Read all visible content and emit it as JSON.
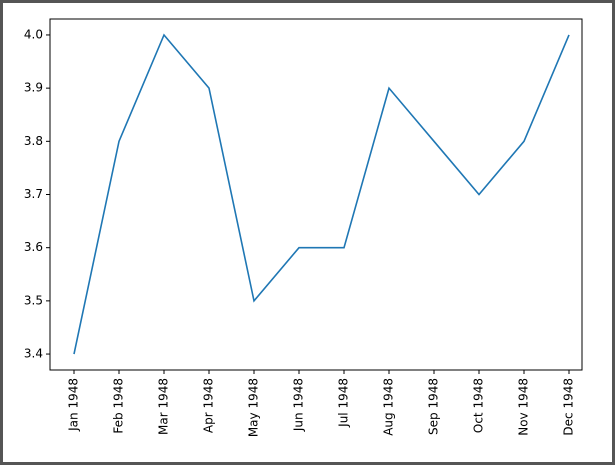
{
  "chart_data": {
    "type": "line",
    "categories": [
      "Jan 1948",
      "Feb 1948",
      "Mar 1948",
      "Apr 1948",
      "May 1948",
      "Jun 1948",
      "Jul 1948",
      "Aug 1948",
      "Sep 1948",
      "Oct 1948",
      "Nov 1948",
      "Dec 1948"
    ],
    "values": [
      3.4,
      3.8,
      4.0,
      3.9,
      3.5,
      3.6,
      3.6,
      3.9,
      3.8,
      3.7,
      3.8,
      4.0
    ],
    "color": "#1f77b4",
    "ylim": [
      3.37,
      4.03
    ],
    "yticks": [
      3.4,
      3.5,
      3.6,
      3.7,
      3.8,
      3.9,
      {
        "value": 4,
        "label": "4.0"
      }
    ],
    "grid": false
  }
}
